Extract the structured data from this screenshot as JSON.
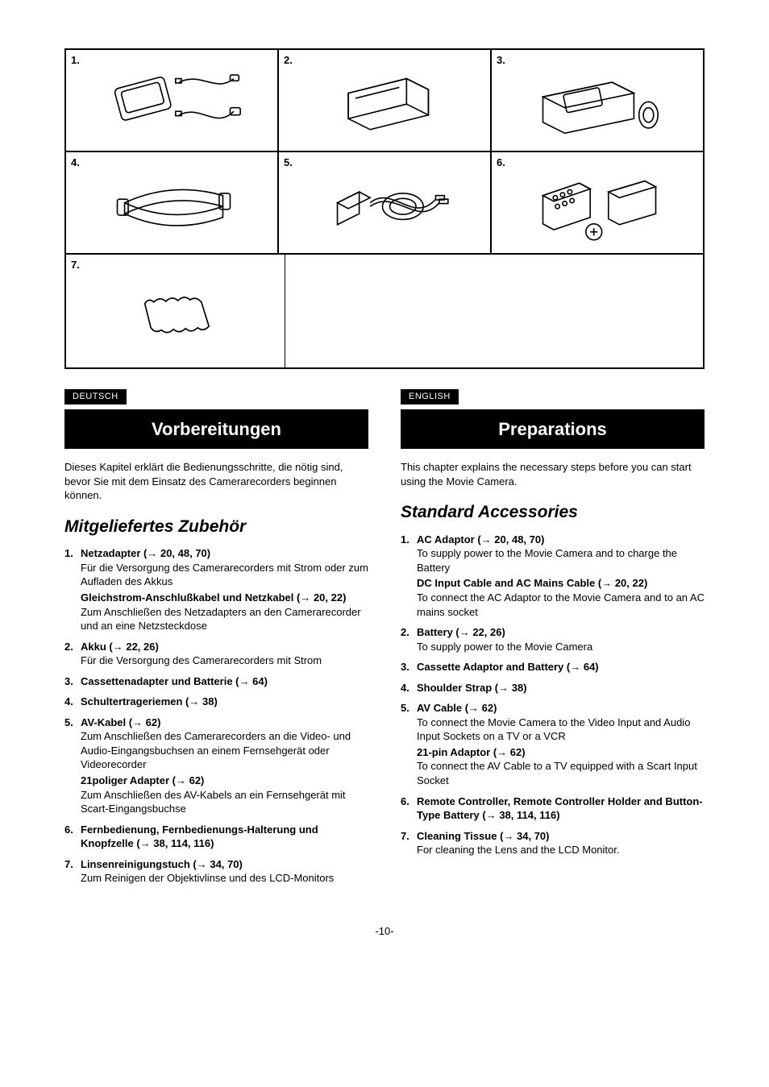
{
  "figures": {
    "row1": [
      "1.",
      "2.",
      "3."
    ],
    "row2": [
      "4.",
      "5.",
      "6."
    ],
    "row3": [
      "7."
    ]
  },
  "german": {
    "lang": "DEUTSCH",
    "heading": "Vorbereitungen",
    "intro": "Dieses Kapitel erklärt die Bedienungsschritte, die nötig sind, bevor Sie mit dem Einsatz des Camerarecorders beginnen können.",
    "section": "Mitgeliefertes Zubehör",
    "items": [
      {
        "title": "Netzadapter (→ 20, 48, 70)",
        "desc": "Für die Versorgung des Camerarecorders mit Strom oder zum Aufladen des Akkus",
        "sub": "Gleichstrom-Anschlußkabel und Netzkabel (→ 20, 22)",
        "subdesc": "Zum Anschließen des Netzadapters an den Camerarecorder und an eine Netzsteckdose"
      },
      {
        "title": "Akku (→ 22, 26)",
        "desc": "Für die Versorgung des Camerarecorders mit Strom"
      },
      {
        "title": "Cassettenadapter und Batterie (→ 64)"
      },
      {
        "title": "Schultertrageriemen (→ 38)"
      },
      {
        "title": "AV-Kabel (→ 62)",
        "desc": "Zum Anschließen des Camerarecorders an die Video- und Audio-Eingangsbuchsen an einem Fernsehgerät oder Videorecorder",
        "sub": "21poliger Adapter (→ 62)",
        "subdesc": "Zum Anschließen des AV-Kabels an ein Fernsehgerät mit Scart-Eingangsbuchse"
      },
      {
        "title": "Fernbedienung, Fernbedienungs-Halterung und Knopfzelle (→ 38, 114, 116)"
      },
      {
        "title": "Linsenreinigungstuch (→ 34, 70)",
        "desc": "Zum Reinigen der Objektivlinse und des LCD-Monitors"
      }
    ]
  },
  "english": {
    "lang": "ENGLISH",
    "heading": "Preparations",
    "intro": "This chapter explains the necessary steps before you can start using the Movie Camera.",
    "section": "Standard Accessories",
    "items": [
      {
        "title": "AC Adaptor (→ 20, 48, 70)",
        "desc": "To supply power to the Movie Camera and to charge the Battery",
        "sub": "DC Input Cable and AC Mains Cable (→ 20, 22)",
        "subdesc": "To connect the AC Adaptor to the Movie Camera and to an AC mains socket"
      },
      {
        "title": "Battery (→ 22, 26)",
        "desc": "To supply power to the Movie Camera"
      },
      {
        "title": "Cassette Adaptor and Battery (→ 64)"
      },
      {
        "title": "Shoulder Strap (→ 38)"
      },
      {
        "title": "AV Cable (→ 62)",
        "desc": "To connect the Movie Camera to the Video Input and Audio Input Sockets on a TV or a VCR",
        "sub": "21-pin Adaptor (→ 62)",
        "subdesc": "To connect the AV Cable to a TV equipped with a Scart Input Socket"
      },
      {
        "title": "Remote Controller, Remote Controller Holder and Button-Type Battery (→ 38, 114, 116)"
      },
      {
        "title": "Cleaning Tissue (→ 34, 70)",
        "desc": "For cleaning the Lens and the LCD Monitor."
      }
    ]
  },
  "page": "-10-"
}
